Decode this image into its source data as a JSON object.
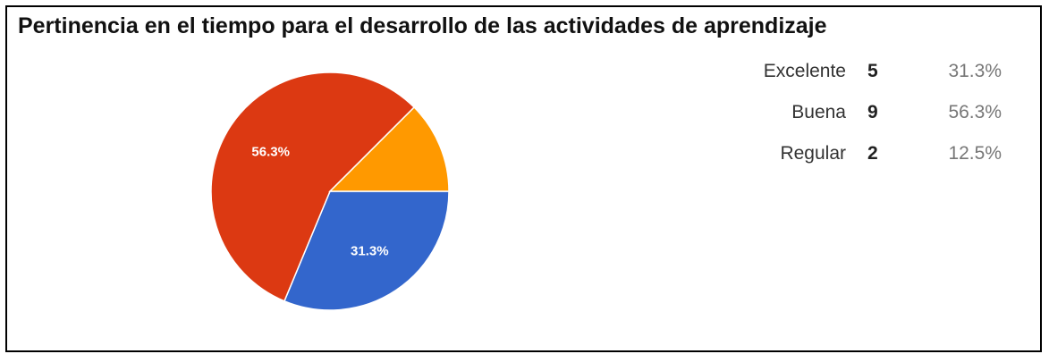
{
  "chart_data": {
    "type": "pie",
    "title": "Pertinencia en el tiempo para el desarrollo de las actividades de aprendizaje",
    "legend_placement": "top-right",
    "slices": [
      {
        "label": "Excelente",
        "count": 5,
        "percent": "31.3%",
        "value": 31.3,
        "color": "#3366cc",
        "show_label": true
      },
      {
        "label": "Buena",
        "count": 9,
        "percent": "56.3%",
        "value": 56.3,
        "color": "#dc3912",
        "show_label": true
      },
      {
        "label": "Regular",
        "count": 2,
        "percent": "12.5%",
        "value": 12.5,
        "color": "#ff9900",
        "show_label": false
      }
    ]
  }
}
